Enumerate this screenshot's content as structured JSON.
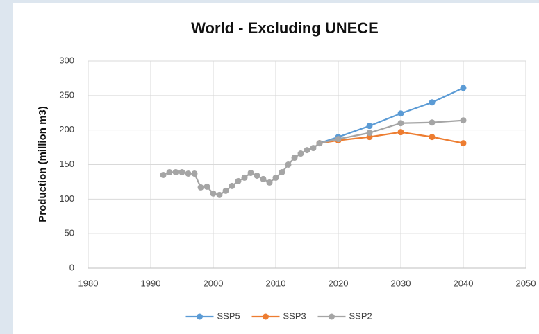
{
  "chart_data": {
    "type": "line",
    "title": "World - Excluding UNECE",
    "y_label": "Production (million m3)",
    "x": [
      1992,
      1993,
      1994,
      1995,
      1996,
      1997,
      1998,
      1999,
      2000,
      2001,
      2002,
      2003,
      2004,
      2005,
      2006,
      2007,
      2008,
      2009,
      2010,
      2011,
      2012,
      2013,
      2014,
      2015,
      2016,
      2017,
      2020,
      2025,
      2030,
      2035,
      2040
    ],
    "series": [
      {
        "name": "SSP5",
        "color": "#5b9bd5",
        "values": [
          null,
          null,
          null,
          null,
          null,
          null,
          null,
          null,
          null,
          null,
          null,
          null,
          null,
          null,
          null,
          null,
          null,
          null,
          null,
          null,
          null,
          null,
          null,
          null,
          null,
          181,
          190,
          206,
          224,
          240,
          261
        ]
      },
      {
        "name": "SSP3",
        "color": "#ed7d31",
        "values": [
          null,
          null,
          null,
          null,
          null,
          null,
          null,
          null,
          null,
          null,
          null,
          null,
          null,
          null,
          null,
          null,
          null,
          null,
          null,
          null,
          null,
          null,
          null,
          null,
          null,
          181,
          185,
          190,
          197,
          190,
          181
        ]
      },
      {
        "name": "SSP2",
        "color": "#a5a5a5",
        "values": [
          135,
          139,
          139,
          139,
          137,
          137,
          117,
          118,
          108,
          106,
          112,
          119,
          126,
          131,
          138,
          134,
          129,
          124,
          131,
          139,
          150,
          160,
          166,
          171,
          174,
          181,
          187,
          196,
          210,
          211,
          214
        ]
      }
    ],
    "xlim": [
      1980,
      2050
    ],
    "xticks": [
      1980,
      1990,
      2000,
      2010,
      2020,
      2030,
      2040,
      2050
    ],
    "ylim": [
      0,
      300
    ],
    "yticks": [
      0,
      50,
      100,
      150,
      200,
      250,
      300
    ],
    "grid": true,
    "legend": "bottom"
  }
}
